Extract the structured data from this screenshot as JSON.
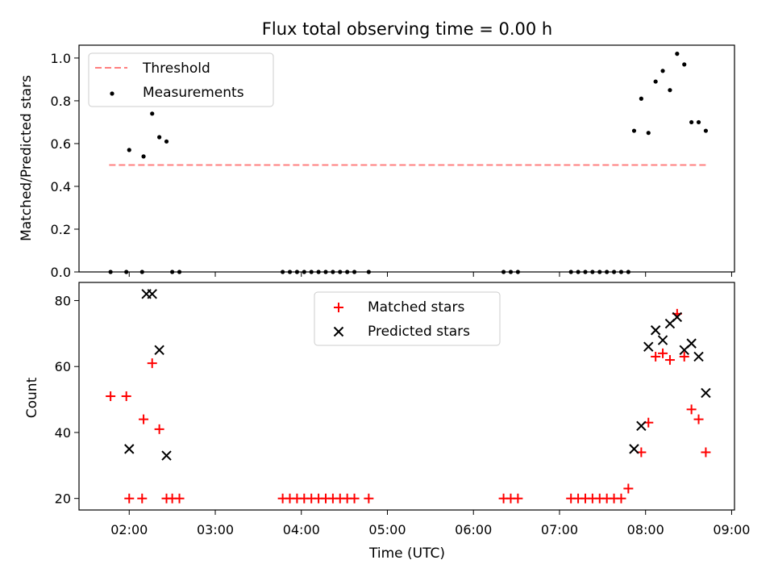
{
  "chart_data": [
    {
      "type": "scatter",
      "title": "Flux total observing time = 0.00 h",
      "xlabel": "",
      "ylabel": "Matched/Predicted stars",
      "xlim": [
        "01:25",
        "09:02"
      ],
      "ylim": [
        0,
        1.06
      ],
      "yticks": [
        "0.0",
        "0.2",
        "0.4",
        "0.6",
        "0.8",
        "1.0"
      ],
      "legend_position": "upper left",
      "threshold": {
        "name": "Threshold",
        "y": 0.5,
        "x_range": [
          "01:46",
          "08:42"
        ],
        "color": "#ff7f7f"
      },
      "series": [
        {
          "name": "Measurements",
          "color": "#000000",
          "points": [
            [
              "01:47",
              0
            ],
            [
              "01:58",
              0
            ],
            [
              "02:00",
              0.57
            ],
            [
              "02:09",
              0
            ],
            [
              "02:10",
              0.54
            ],
            [
              "02:16",
              0.74
            ],
            [
              "02:21",
              0.63
            ],
            [
              "02:26",
              0.61
            ],
            [
              "02:30",
              0
            ],
            [
              "02:35",
              0
            ],
            [
              "03:47",
              0
            ],
            [
              "03:52",
              0
            ],
            [
              "03:57",
              0
            ],
            [
              "04:02",
              0
            ],
            [
              "04:07",
              0
            ],
            [
              "04:12",
              0
            ],
            [
              "04:17",
              0
            ],
            [
              "04:22",
              0
            ],
            [
              "04:27",
              0
            ],
            [
              "04:32",
              0
            ],
            [
              "04:37",
              0
            ],
            [
              "04:47",
              0
            ],
            [
              "06:21",
              0
            ],
            [
              "06:26",
              0
            ],
            [
              "06:31",
              0
            ],
            [
              "07:08",
              0
            ],
            [
              "07:13",
              0
            ],
            [
              "07:18",
              0
            ],
            [
              "07:23",
              0
            ],
            [
              "07:28",
              0
            ],
            [
              "07:33",
              0
            ],
            [
              "07:38",
              0
            ],
            [
              "07:43",
              0
            ],
            [
              "07:48",
              0
            ],
            [
              "07:52",
              0.66
            ],
            [
              "07:57",
              0.81
            ],
            [
              "08:02",
              0.65
            ],
            [
              "08:07",
              0.89
            ],
            [
              "08:12",
              0.94
            ],
            [
              "08:17",
              0.85
            ],
            [
              "08:22",
              1.02
            ],
            [
              "08:27",
              0.97
            ],
            [
              "08:32",
              0.7
            ],
            [
              "08:37",
              0.7
            ],
            [
              "08:42",
              0.66
            ]
          ]
        }
      ]
    },
    {
      "type": "scatter",
      "title": "",
      "xlabel": "Time (UTC)",
      "ylabel": "Count",
      "xlim": [
        "01:25",
        "09:02"
      ],
      "ylim": [
        16.5,
        85.5
      ],
      "yticks": [
        "20",
        "40",
        "60",
        "80"
      ],
      "xticks": [
        "02:00",
        "03:00",
        "04:00",
        "05:00",
        "06:00",
        "07:00",
        "08:00",
        "09:00"
      ],
      "legend_position": "upper center",
      "series": [
        {
          "name": "Matched stars",
          "marker": "plus",
          "color": "#ff0000",
          "points": [
            [
              "01:47",
              51
            ],
            [
              "01:58",
              51
            ],
            [
              "02:00",
              20
            ],
            [
              "02:09",
              20
            ],
            [
              "02:10",
              44
            ],
            [
              "02:16",
              61
            ],
            [
              "02:21",
              41
            ],
            [
              "02:26",
              20
            ],
            [
              "02:30",
              20
            ],
            [
              "02:35",
              20
            ],
            [
              "03:47",
              20
            ],
            [
              "03:52",
              20
            ],
            [
              "03:57",
              20
            ],
            [
              "04:02",
              20
            ],
            [
              "04:07",
              20
            ],
            [
              "04:12",
              20
            ],
            [
              "04:17",
              20
            ],
            [
              "04:22",
              20
            ],
            [
              "04:27",
              20
            ],
            [
              "04:32",
              20
            ],
            [
              "04:37",
              20
            ],
            [
              "04:47",
              20
            ],
            [
              "06:21",
              20
            ],
            [
              "06:26",
              20
            ],
            [
              "06:31",
              20
            ],
            [
              "07:08",
              20
            ],
            [
              "07:13",
              20
            ],
            [
              "07:18",
              20
            ],
            [
              "07:23",
              20
            ],
            [
              "07:28",
              20
            ],
            [
              "07:33",
              20
            ],
            [
              "07:38",
              20
            ],
            [
              "07:43",
              20
            ],
            [
              "07:48",
              23
            ],
            [
              "07:57",
              34
            ],
            [
              "08:02",
              43
            ],
            [
              "08:07",
              63
            ],
            [
              "08:12",
              64
            ],
            [
              "08:17",
              62
            ],
            [
              "08:22",
              76
            ],
            [
              "08:27",
              63
            ],
            [
              "08:32",
              47
            ],
            [
              "08:37",
              44
            ],
            [
              "08:42",
              34
            ]
          ]
        },
        {
          "name": "Predicted stars",
          "marker": "x",
          "color": "#000000",
          "points": [
            [
              "02:00",
              35
            ],
            [
              "02:12",
              82
            ],
            [
              "02:16",
              82
            ],
            [
              "02:21",
              65
            ],
            [
              "02:26",
              33
            ],
            [
              "07:52",
              35
            ],
            [
              "07:57",
              42
            ],
            [
              "08:02",
              66
            ],
            [
              "08:07",
              71
            ],
            [
              "08:12",
              68
            ],
            [
              "08:17",
              73
            ],
            [
              "08:22",
              75
            ],
            [
              "08:27",
              65
            ],
            [
              "08:32",
              67
            ],
            [
              "08:37",
              63
            ],
            [
              "08:42",
              52
            ]
          ]
        }
      ]
    }
  ]
}
